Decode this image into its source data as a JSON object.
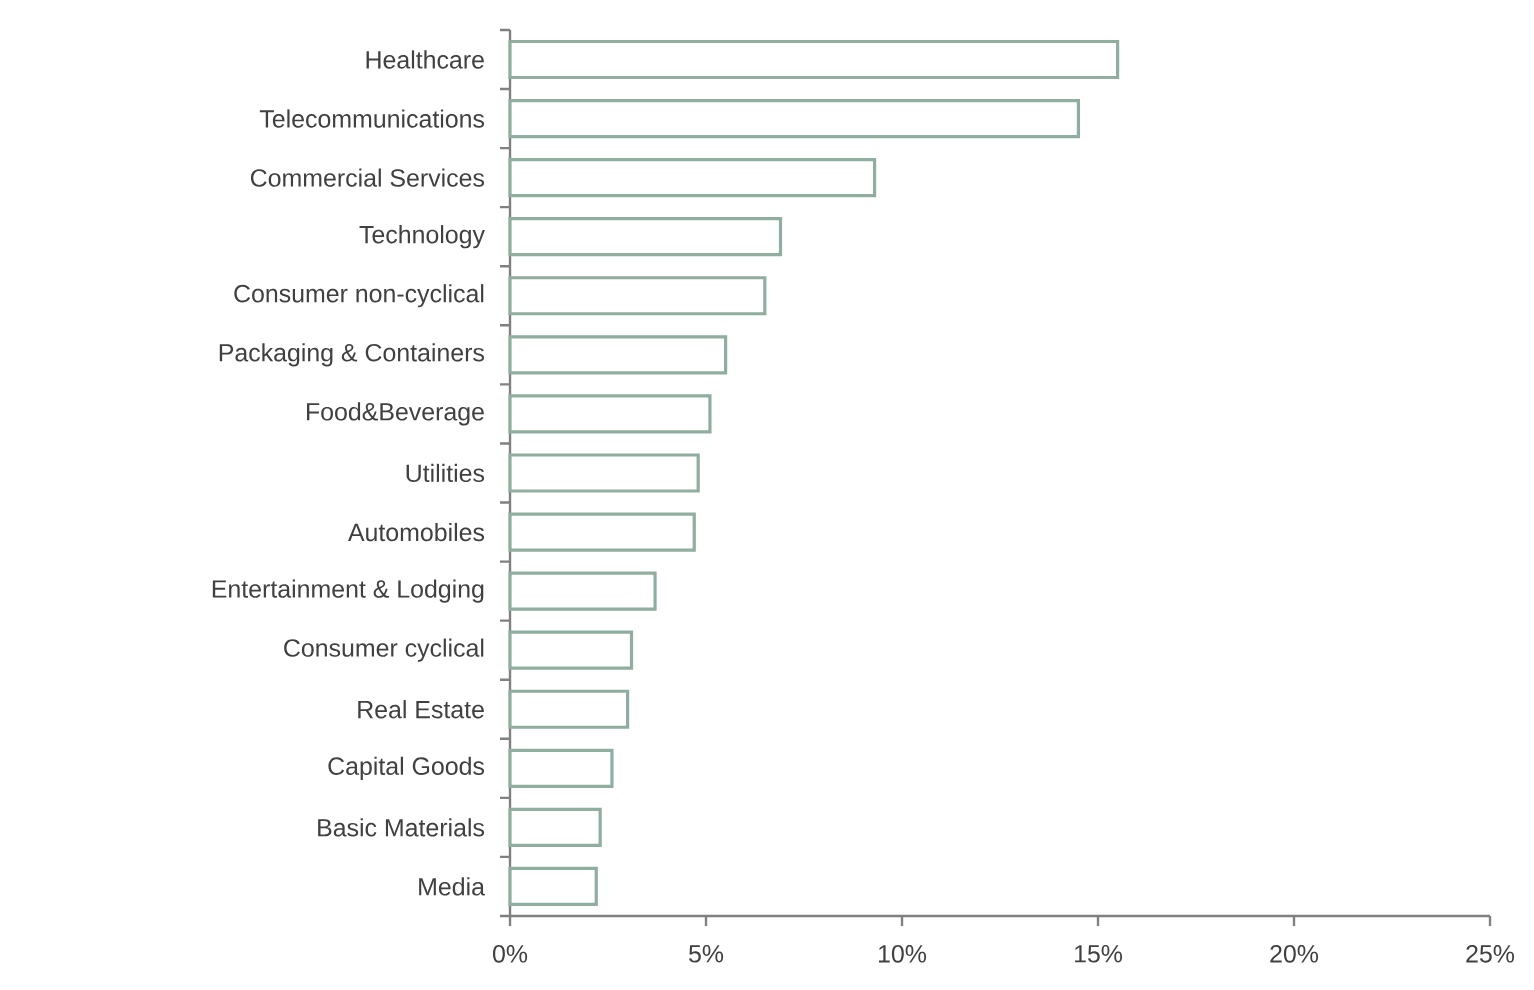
{
  "chart_data": {
    "type": "bar",
    "orientation": "horizontal",
    "categories": [
      "Healthcare",
      "Telecommunications",
      "Commercial Services",
      "Technology",
      "Consumer non-cyclical",
      "Packaging & Containers",
      "Food&Beverage",
      "Utilities",
      "Automobiles",
      "Entertainment & Lodging",
      "Consumer cyclical",
      "Real Estate",
      "Capital Goods",
      "Basic Materials",
      "Media"
    ],
    "values": [
      15.5,
      14.5,
      9.3,
      6.9,
      6.5,
      5.5,
      5.1,
      4.8,
      4.7,
      3.7,
      3.1,
      3.0,
      2.6,
      2.3,
      2.2
    ],
    "color": "#8fae9f",
    "xlim": [
      0,
      25
    ],
    "xticks": [
      {
        "value": 0,
        "label": "0%"
      },
      {
        "value": 5,
        "label": "5%"
      },
      {
        "value": 10,
        "label": "10%"
      },
      {
        "value": 15,
        "label": "15%"
      },
      {
        "value": 20,
        "label": "20%"
      },
      {
        "value": 25,
        "label": "25%"
      }
    ],
    "grid": false
  }
}
